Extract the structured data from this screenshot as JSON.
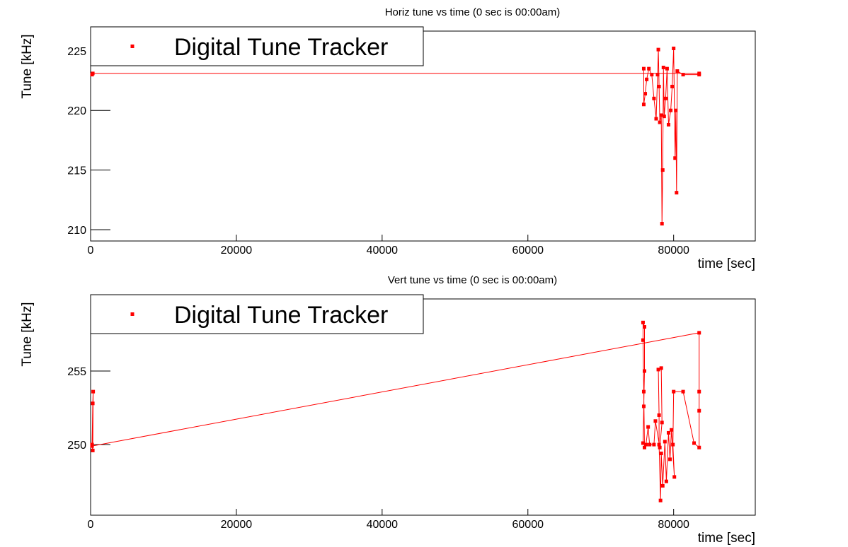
{
  "chart_data": [
    {
      "type": "line",
      "title": "Horiz tune vs time (0 sec is 00:00am)",
      "x_label": "time [sec]",
      "y_label": "Tune [kHz]",
      "x": [
        200,
        300,
        83500,
        83500,
        81300,
        80500,
        80400,
        80300,
        80200,
        80000,
        79800,
        79600,
        79300,
        79100,
        78900,
        78700,
        78600,
        78500,
        78400,
        78300,
        78100,
        78000,
        77900,
        77800,
        77600,
        77300,
        77000,
        76600,
        76300,
        76100,
        75900,
        75900
      ],
      "series": [
        {
          "name": "Digital Tune Tracker",
          "color": "#ff0000",
          "values": [
            223.0,
            223.1,
            223.1,
            223.0,
            223.0,
            223.3,
            213.1,
            220.0,
            216.0,
            225.2,
            222.0,
            220.0,
            218.8,
            223.5,
            221.0,
            219.5,
            223.6,
            215.0,
            210.5,
            219.6,
            219.0,
            222.0,
            225.1,
            223.0,
            219.3,
            221.0,
            223.0,
            223.5,
            222.6,
            221.4,
            220.5,
            223.5
          ]
        }
      ],
      "xlim": [
        0,
        91200
      ],
      "ylim": [
        209.05,
        226.65
      ],
      "xticks": [
        0,
        20000,
        40000,
        60000,
        80000
      ],
      "yticks": [
        210,
        215,
        220,
        225
      ],
      "legend": "upper left"
    },
    {
      "type": "line",
      "title": "Vert tune vs time (0 sec is 00:00am)",
      "x_label": "time [sec]",
      "y_label": "Tune [kHz]",
      "x": [
        200,
        300,
        350,
        300,
        200,
        83500,
        83500,
        83500,
        83500,
        82800,
        81300,
        80000,
        79900,
        80100,
        79700,
        79500,
        79300,
        79000,
        78800,
        78500,
        78300,
        78200,
        78000,
        78000,
        77900,
        78300,
        78400,
        78100,
        77500,
        77300,
        76700,
        76500,
        76200,
        76000,
        75900,
        75800,
        75800,
        76000,
        76000,
        75900,
        75800
      ],
      "series": [
        {
          "name": "Digital Tune Tracker",
          "color": "#ff0000",
          "values": [
            250.0,
            252.8,
            253.6,
            249.6,
            249.9,
            257.6,
            253.6,
            252.3,
            249.8,
            250.1,
            253.6,
            253.6,
            250.0,
            247.8,
            251.0,
            249.0,
            250.8,
            247.5,
            250.2,
            247.2,
            249.4,
            246.2,
            250.0,
            252.0,
            255.1,
            255.2,
            251.5,
            249.8,
            251.6,
            250.0,
            250.0,
            251.2,
            250.0,
            249.8,
            253.6,
            257.1,
            258.3,
            258.0,
            255.0,
            252.6,
            250.1
          ]
        }
      ],
      "xlim": [
        0,
        91200
      ],
      "ylim": [
        245.2,
        259.9
      ],
      "xticks": [
        0,
        20000,
        40000,
        60000,
        80000
      ],
      "yticks": [
        250,
        255
      ],
      "legend": "upper left"
    }
  ]
}
